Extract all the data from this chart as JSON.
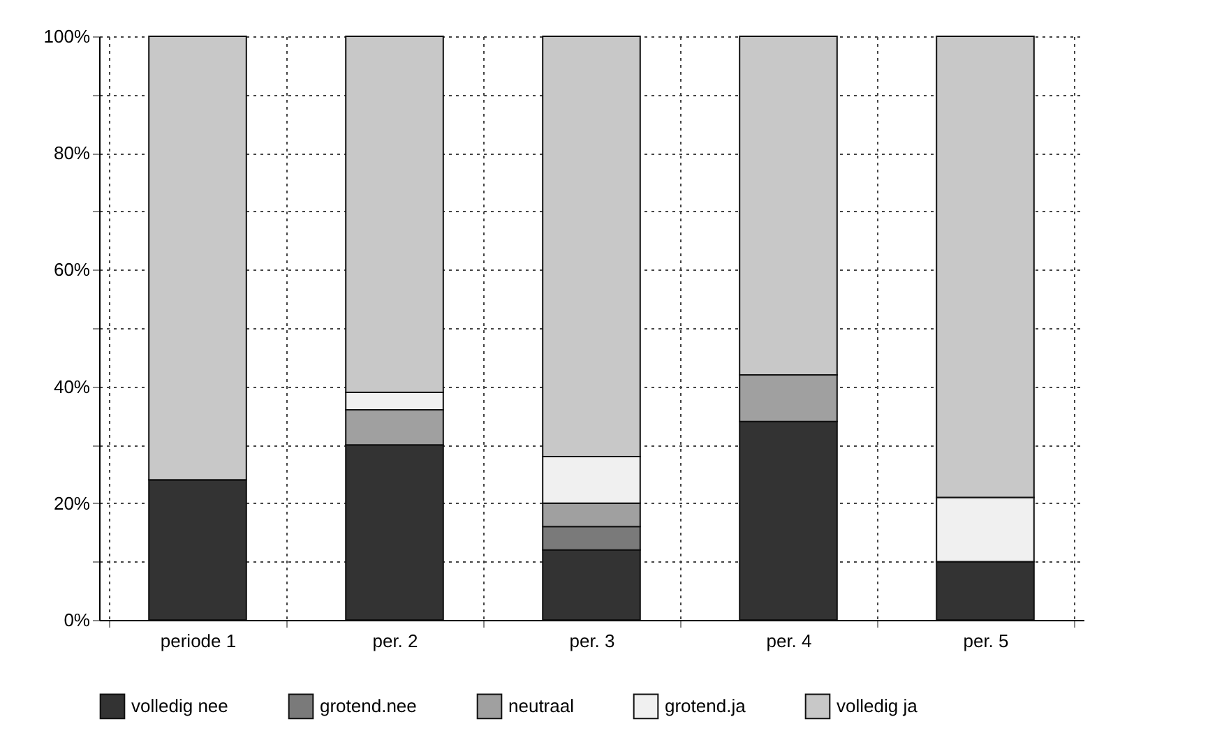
{
  "chart_data": {
    "type": "bar",
    "stacked": true,
    "categories": [
      "periode 1",
      "per. 2",
      "per. 3",
      "per. 4",
      "per. 5"
    ],
    "series": [
      {
        "name": "volledig nee",
        "color": "#333333",
        "values": [
          24,
          30,
          12,
          34,
          10
        ]
      },
      {
        "name": "grotend.nee",
        "color": "#7a7a7a",
        "values": [
          0,
          0,
          4,
          0,
          0
        ]
      },
      {
        "name": "neutraal",
        "color": "#a0a0a0",
        "values": [
          0,
          6,
          4,
          8,
          0
        ]
      },
      {
        "name": "grotend.ja",
        "color": "#f0f0f0",
        "values": [
          0,
          3,
          8,
          0,
          11
        ]
      },
      {
        "name": "volledig ja",
        "color": "#c8c8c8",
        "values": [
          76,
          61,
          72,
          58,
          79
        ]
      }
    ],
    "ylim": [
      0,
      100
    ],
    "yticks": [
      {
        "value": 0,
        "label": "0%"
      },
      {
        "value": 10,
        "label": null
      },
      {
        "value": 20,
        "label": "20%"
      },
      {
        "value": 30,
        "label": null
      },
      {
        "value": 40,
        "label": "40%"
      },
      {
        "value": 50,
        "label": null
      },
      {
        "value": 60,
        "label": "60%"
      },
      {
        "value": 70,
        "label": null
      },
      {
        "value": 80,
        "label": "80%"
      },
      {
        "value": 90,
        "label": null
      },
      {
        "value": 100,
        "label": "100%"
      }
    ],
    "grid": true,
    "legend": "bottom"
  }
}
